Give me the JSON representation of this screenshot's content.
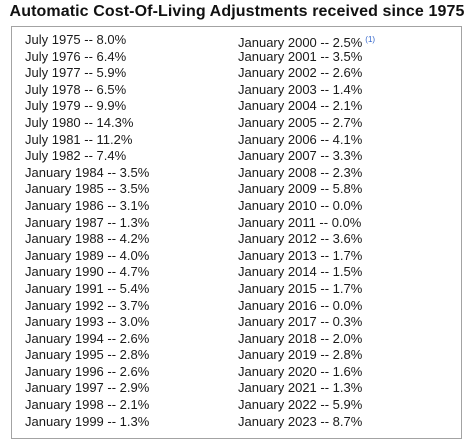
{
  "title": "Automatic Cost-Of-Living Adjustments received since 1975",
  "footnote_mark": "(1)",
  "left_column": [
    "July 1975 -- 8.0%",
    "July 1976 -- 6.4%",
    "July 1977 -- 5.9%",
    "July 1978 -- 6.5%",
    "July 1979 -- 9.9%",
    "July 1980 -- 14.3%",
    "July 1981 -- 11.2%",
    "July 1982 -- 7.4%",
    "January 1984 -- 3.5%",
    "January 1985 -- 3.5%",
    "January 1986 -- 3.1%",
    "January 1987 -- 1.3%",
    "January 1988 -- 4.2%",
    "January 1989 -- 4.0%",
    "January 1990 -- 4.7%",
    "January 1991 -- 5.4%",
    "January 1992 -- 3.7%",
    "January 1993 -- 3.0%",
    "January 1994 -- 2.6%",
    "January 1995 -- 2.8%",
    "January 1996 -- 2.6%",
    "January 1997 -- 2.9%",
    "January 1998 -- 2.1%",
    "January 1999 -- 1.3%"
  ],
  "right_column": [
    "January 2000 -- 2.5%",
    "January 2001 -- 3.5%",
    "January 2002 -- 2.6%",
    "January 2003 -- 1.4%",
    "January 2004 -- 2.1%",
    "January 2005 -- 2.7%",
    "January 2006 -- 4.1%",
    "January 2007 -- 3.3%",
    "January 2008 -- 2.3%",
    "January 2009 -- 5.8%",
    "January 2010 -- 0.0%",
    "January 2011 -- 0.0%",
    "January 2012 -- 3.6%",
    "January 2013 -- 1.7%",
    "January 2014 -- 1.5%",
    "January 2015 -- 1.7%",
    "January 2016 -- 0.0%",
    "January 2017 -- 0.3%",
    "January 2018 -- 2.0%",
    "January 2019 -- 2.8%",
    "January 2020 -- 1.6%",
    "January 2021 -- 1.3%",
    "January 2022 -- 5.9%",
    "January 2023 -- 8.7%"
  ]
}
